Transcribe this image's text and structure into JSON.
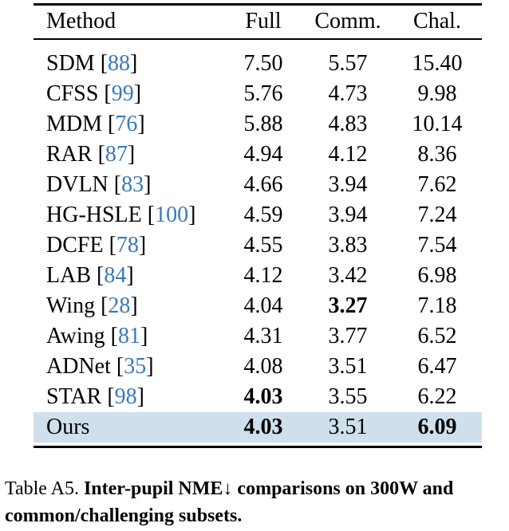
{
  "table": {
    "header": [
      "Method",
      "Full",
      "Comm.",
      "Chal."
    ],
    "citation_brackets": [
      "[",
      "]"
    ],
    "rows": [
      {
        "method": "SDM",
        "ref": "88",
        "values": [
          "7.50",
          "5.57",
          "15.40"
        ],
        "bold": [
          false,
          false,
          false
        ],
        "highlighted": false
      },
      {
        "method": "CFSS",
        "ref": "99",
        "values": [
          "5.76",
          "4.73",
          "9.98"
        ],
        "bold": [
          false,
          false,
          false
        ],
        "highlighted": false
      },
      {
        "method": "MDM",
        "ref": "76",
        "values": [
          "5.88",
          "4.83",
          "10.14"
        ],
        "bold": [
          false,
          false,
          false
        ],
        "highlighted": false
      },
      {
        "method": "RAR",
        "ref": "87",
        "values": [
          "4.94",
          "4.12",
          "8.36"
        ],
        "bold": [
          false,
          false,
          false
        ],
        "highlighted": false
      },
      {
        "method": "DVLN",
        "ref": "83",
        "values": [
          "4.66",
          "3.94",
          "7.62"
        ],
        "bold": [
          false,
          false,
          false
        ],
        "highlighted": false
      },
      {
        "method": "HG-HSLE",
        "ref": "100",
        "values": [
          "4.59",
          "3.94",
          "7.24"
        ],
        "bold": [
          false,
          false,
          false
        ],
        "highlighted": false
      },
      {
        "method": "DCFE",
        "ref": "78",
        "values": [
          "4.55",
          "3.83",
          "7.54"
        ],
        "bold": [
          false,
          false,
          false
        ],
        "highlighted": false
      },
      {
        "method": "LAB",
        "ref": "84",
        "values": [
          "4.12",
          "3.42",
          "6.98"
        ],
        "bold": [
          false,
          false,
          false
        ],
        "highlighted": false
      },
      {
        "method": "Wing",
        "ref": "28",
        "values": [
          "4.04",
          "3.27",
          "7.18"
        ],
        "bold": [
          false,
          true,
          false
        ],
        "highlighted": false
      },
      {
        "method": "Awing",
        "ref": "81",
        "values": [
          "4.31",
          "3.77",
          "6.52"
        ],
        "bold": [
          false,
          false,
          false
        ],
        "highlighted": false
      },
      {
        "method": "ADNet",
        "ref": "35",
        "values": [
          "4.08",
          "3.51",
          "6.47"
        ],
        "bold": [
          false,
          false,
          false
        ],
        "highlighted": false
      },
      {
        "method": "STAR",
        "ref": "98",
        "values": [
          "4.03",
          "3.55",
          "6.22"
        ],
        "bold": [
          true,
          false,
          false
        ],
        "highlighted": false
      },
      {
        "method": "Ours",
        "ref": null,
        "values": [
          "4.03",
          "3.51",
          "6.09"
        ],
        "bold": [
          true,
          false,
          true
        ],
        "highlighted": true
      }
    ]
  },
  "caption": {
    "label": "Table A5.",
    "text": "Inter-pupil NME↓ comparisons on 300W and common/challenging subsets."
  }
}
